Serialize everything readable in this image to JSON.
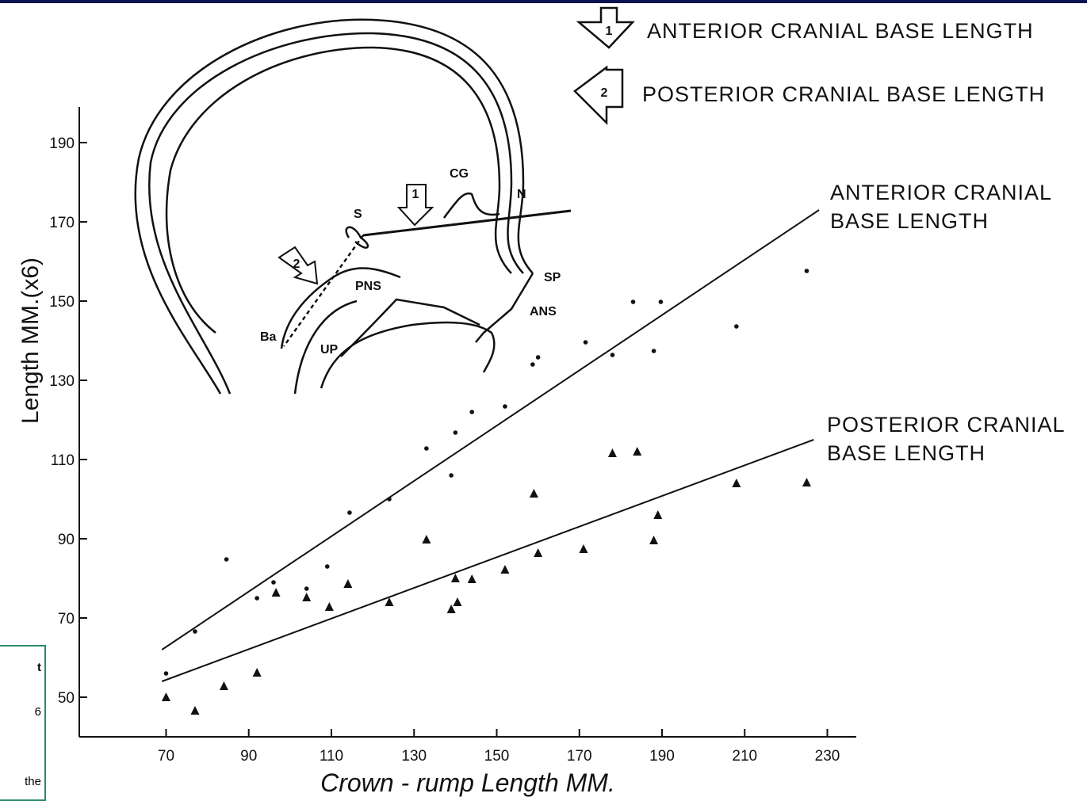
{
  "chart_data": {
    "type": "scatter",
    "xlabel": "Crown - rump Length  MM.",
    "ylabel": "Length MM.(x6)",
    "xlim": [
      49,
      237
    ],
    "ylim": [
      40,
      199
    ],
    "xticks": [
      70,
      90,
      110,
      130,
      150,
      170,
      190,
      210,
      230
    ],
    "yticks": [
      50,
      70,
      90,
      110,
      130,
      150,
      170,
      190
    ],
    "series": [
      {
        "name": "ANTERIOR  CRANIAL BASE LENGTH",
        "legend": "ANTERIOR  CRANIAL  BASE  LENGTH",
        "marker": "dot",
        "color": "#111",
        "x": [
          70,
          77,
          84.6,
          92,
          96,
          104,
          109,
          114.4,
          124,
          133,
          139,
          140,
          144,
          152,
          158.7,
          160,
          171.5,
          178,
          183,
          188,
          189.7,
          208,
          225
        ],
        "values": [
          56,
          66.6,
          84.8,
          75,
          79,
          77.4,
          83,
          96.6,
          100,
          112.8,
          106,
          116.8,
          122,
          123.4,
          134,
          135.8,
          139.6,
          136.4,
          149.8,
          137.4,
          149.8,
          143.6,
          157.6
        ],
        "fit": {
          "x": [
            69,
            228
          ],
          "y": [
            62,
            173
          ]
        }
      },
      {
        "name": "POSTERIOR  CRANIAL BASE  LENGTH",
        "legend": "POSTERIOR  CRANIAL  BASE  LENGTH",
        "marker": "triangle",
        "color": "#111",
        "x": [
          70,
          77,
          84,
          92,
          96.6,
          104,
          109.5,
          114,
          124,
          133,
          139,
          140,
          140.5,
          144,
          152,
          159,
          160,
          171,
          178,
          184,
          188,
          189,
          208,
          225
        ],
        "values": [
          50,
          46.6,
          52.8,
          56.2,
          76.4,
          75.2,
          72.8,
          78.6,
          74,
          89.8,
          72.2,
          80,
          74,
          79.8,
          82.2,
          101.4,
          86.4,
          87.4,
          111.6,
          112,
          89.6,
          96,
          104,
          104.2
        ],
        "fit": {
          "x": [
            69,
            226.7
          ],
          "y": [
            54,
            115
          ]
        }
      }
    ],
    "diagram_labels": [
      "CG",
      "N",
      "S",
      "SP",
      "PNS",
      "ANS",
      "Ba",
      "UP"
    ],
    "arrow_labels": [
      "1",
      "2"
    ]
  },
  "side_note": [
    "t",
    "6",
    "the"
  ]
}
